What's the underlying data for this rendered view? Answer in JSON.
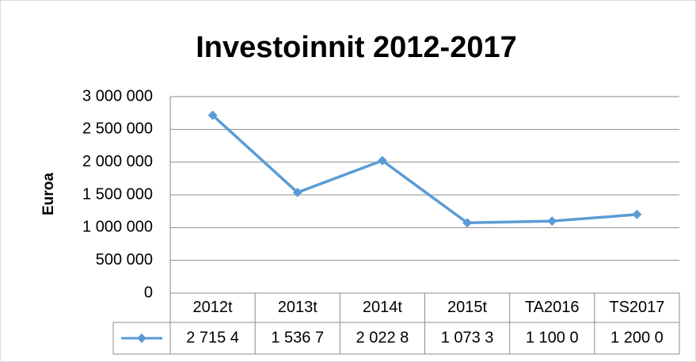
{
  "chart_data": {
    "type": "line",
    "title": "Investoinnit 2012-2017",
    "y_label": "Euroa",
    "categories": [
      "2012t",
      "2013t",
      "2014t",
      "2015t",
      "TA2016",
      "TS2017"
    ],
    "values": [
      2715400,
      1536700,
      2022800,
      1073300,
      1100000,
      1200000
    ],
    "value_labels": [
      "2 715 4",
      "1 536 7",
      "2 022 8",
      "1 073 3",
      "1 100 0",
      "1 200 0"
    ],
    "color": "#5b9bd5",
    "ylim": [
      0,
      3000000
    ],
    "yticks": [
      0,
      {
        "value": 500000,
        "label": "500 000"
      },
      {
        "value": 1000000,
        "label": "1 000 000"
      },
      {
        "value": 1500000,
        "label": "1 500 000"
      },
      {
        "value": 2000000,
        "label": "2 000 000"
      },
      {
        "value": 2500000,
        "label": "2 500 000"
      },
      {
        "value": 3000000,
        "label": "3 000 000"
      }
    ],
    "grid": true
  }
}
